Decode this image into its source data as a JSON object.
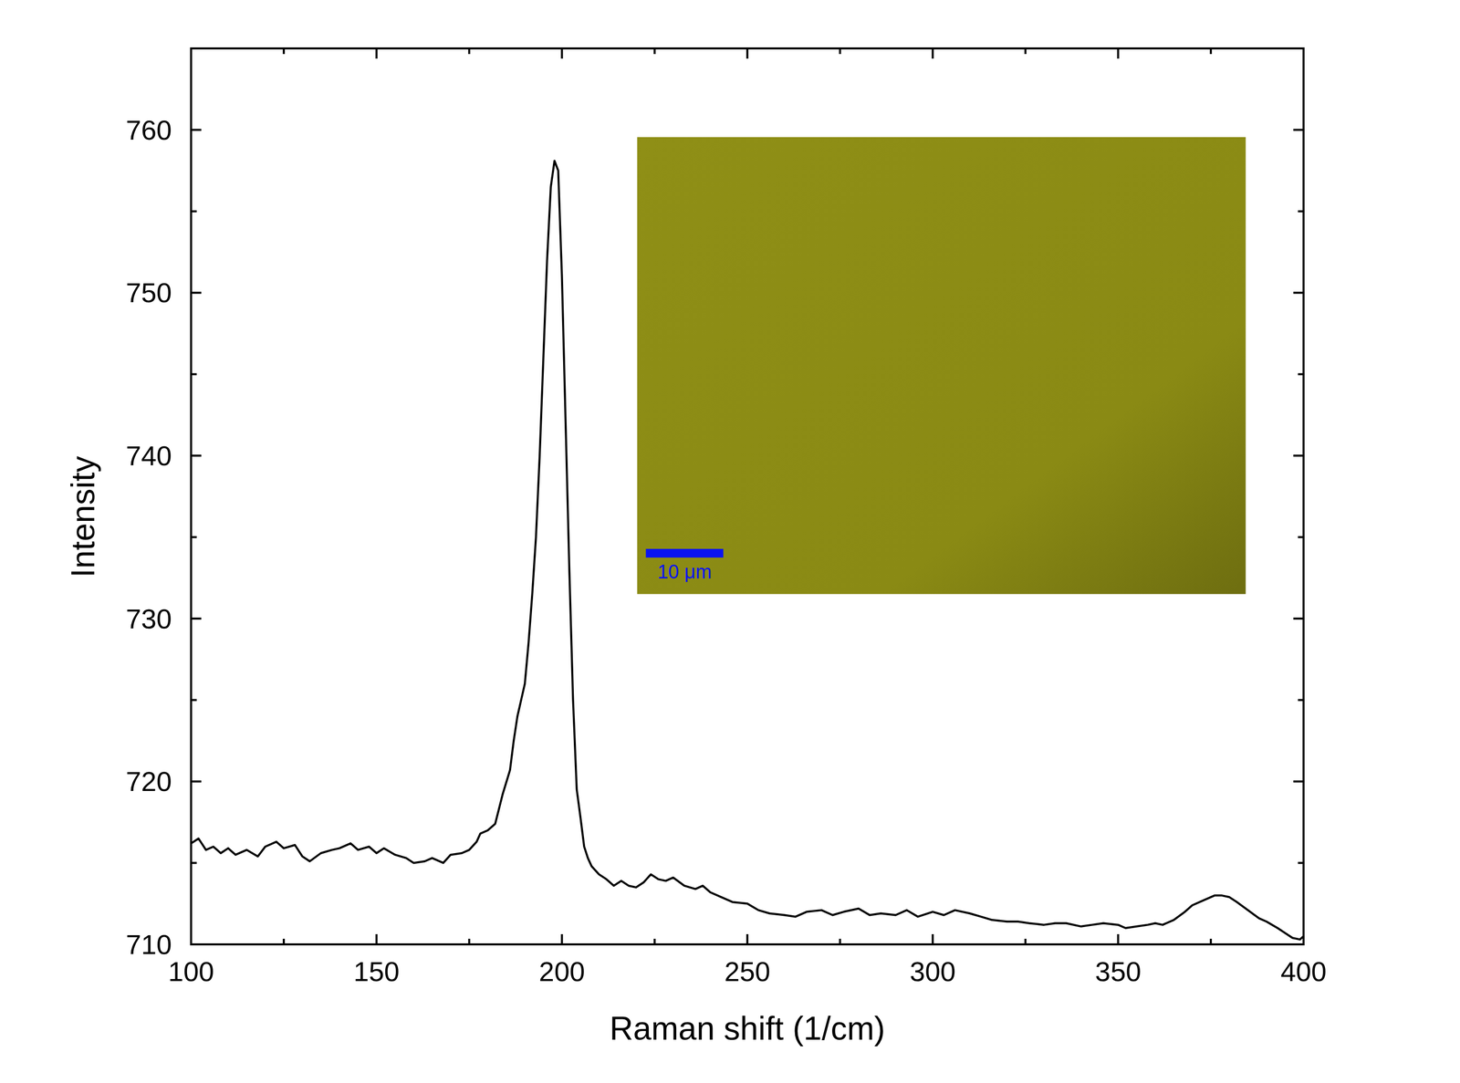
{
  "chart_data": {
    "type": "line",
    "x_label": "Raman shift (1/cm)",
    "y_label": "Intensity",
    "color": "#000000",
    "xlim": [
      100,
      400
    ],
    "xticks": [
      100,
      150,
      200,
      250,
      300,
      350,
      400
    ],
    "ylim": [
      710,
      765
    ],
    "yticks": [
      710,
      720,
      730,
      740,
      750,
      760
    ],
    "x": [
      100,
      102,
      104,
      106,
      108,
      110,
      112,
      115,
      118,
      120,
      123,
      125,
      128,
      130,
      132,
      135,
      138,
      140,
      143,
      145,
      148,
      150,
      152,
      155,
      158,
      160,
      163,
      165,
      168,
      170,
      173,
      175,
      177,
      178,
      180,
      182,
      184,
      186,
      187,
      188,
      190,
      191,
      192,
      193,
      194,
      195,
      196,
      197,
      198,
      199,
      200,
      201,
      202,
      203,
      204,
      205,
      206,
      207,
      208,
      210,
      212,
      214,
      216,
      218,
      220,
      222,
      224,
      226,
      228,
      230,
      233,
      236,
      238,
      240,
      243,
      246,
      250,
      253,
      256,
      260,
      263,
      266,
      270,
      273,
      276,
      280,
      283,
      286,
      290,
      293,
      296,
      300,
      303,
      306,
      310,
      313,
      316,
      320,
      323,
      326,
      330,
      333,
      336,
      340,
      343,
      346,
      350,
      352,
      355,
      358,
      360,
      362,
      365,
      368,
      370,
      373,
      376,
      378,
      380,
      382,
      385,
      388,
      390,
      393,
      395,
      397,
      399,
      400
    ],
    "values": [
      716.2,
      716.5,
      715.8,
      716.0,
      715.6,
      715.9,
      715.5,
      715.8,
      715.4,
      716.0,
      716.3,
      715.9,
      716.1,
      715.4,
      715.1,
      715.6,
      715.8,
      715.9,
      716.2,
      715.8,
      716.0,
      715.6,
      715.9,
      715.5,
      715.3,
      715.0,
      715.1,
      715.3,
      715.0,
      715.5,
      715.6,
      715.8,
      716.3,
      716.8,
      717.0,
      717.4,
      719.2,
      720.7,
      722.5,
      724.0,
      726.0,
      728.5,
      731.5,
      735.0,
      740.0,
      746.0,
      752.0,
      756.5,
      758.1,
      757.5,
      751.0,
      742.0,
      733.0,
      725.0,
      719.5,
      717.8,
      716.0,
      715.3,
      714.8,
      714.3,
      714.0,
      713.6,
      713.9,
      713.6,
      713.5,
      713.8,
      714.3,
      714.0,
      713.9,
      714.1,
      713.6,
      713.4,
      713.6,
      713.2,
      712.9,
      712.6,
      712.5,
      712.1,
      711.9,
      711.8,
      711.7,
      712.0,
      712.1,
      711.8,
      712.0,
      712.2,
      711.8,
      711.9,
      711.8,
      712.1,
      711.7,
      712.0,
      711.8,
      712.1,
      711.9,
      711.7,
      711.5,
      711.4,
      711.4,
      711.3,
      711.2,
      711.3,
      711.3,
      711.1,
      711.2,
      711.3,
      711.2,
      711.0,
      711.1,
      711.2,
      711.3,
      711.2,
      711.5,
      712.0,
      712.4,
      712.7,
      713.0,
      713.0,
      712.9,
      712.6,
      712.1,
      711.6,
      711.4,
      711.0,
      710.7,
      710.4,
      710.3,
      710.5
    ]
  },
  "inset": {
    "scale_bar": "10 μm",
    "scale_bar_color": "#0a14f0"
  }
}
